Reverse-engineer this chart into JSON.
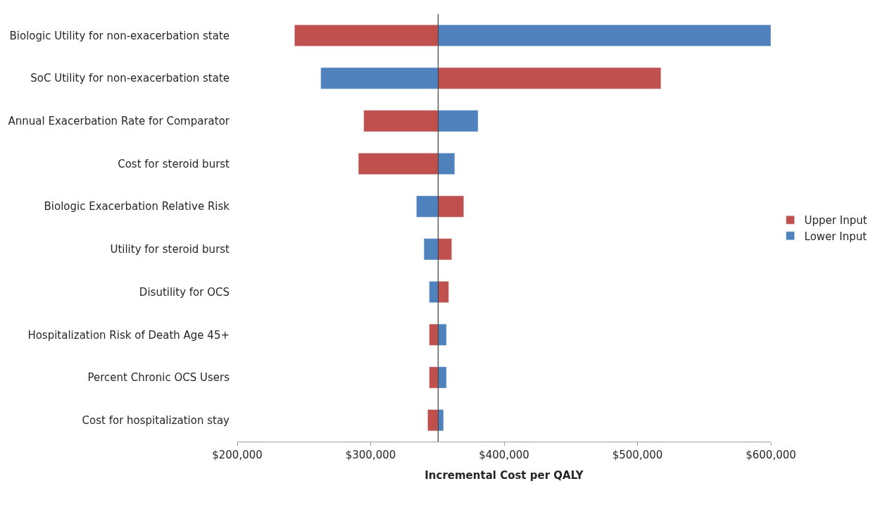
{
  "chart_data": {
    "type": "bar",
    "orientation": "horizontal",
    "xlabel": "Incremental Cost per QALY",
    "categories": [
      "Biologic Utility for non-exacerbation state",
      "SoC Utility for non-exacerbation state",
      "Annual Exacerbation Rate for Comparator",
      "Cost for steroid burst",
      "Biologic Exacerbation Relative Risk",
      "Utility for steroid burst",
      "Disutility for OCS",
      "Hospitalization Risk of Death Age 45+",
      "Percent Chronic OCS Users",
      "Cost for hospitalization stay"
    ],
    "series": [
      {
        "name": "Upper Input",
        "color": "#c0504d",
        "base": [
          242900,
          350600,
          294800,
          290800,
          350600,
          350600,
          350600,
          343900,
          343900,
          342700
        ],
        "values": [
          107700,
          167000,
          55800,
          59800,
          19200,
          10200,
          7900,
          6700,
          6700,
          7900
        ]
      },
      {
        "name": "Lower Input",
        "color": "#4f81bd",
        "base": [
          350600,
          262600,
          350600,
          350600,
          334300,
          339900,
          343900,
          350600,
          350600,
          350600
        ],
        "values": [
          249400,
          88000,
          29900,
          12400,
          16300,
          10700,
          6700,
          6200,
          6200,
          4000
        ]
      }
    ],
    "xlim": [
      200000,
      600000
    ],
    "xticks": [
      {
        "value": 200000,
        "label": "$200,000"
      },
      {
        "value": 300000,
        "label": "$300,000"
      },
      {
        "value": 400000,
        "label": "$400,000"
      },
      {
        "value": 500000,
        "label": "$500,000"
      },
      {
        "value": 600000,
        "label": "$600,000"
      }
    ],
    "ref_lines": [
      {
        "axis": "x",
        "value": 350600,
        "color": "#404040"
      }
    ],
    "legend": "right"
  }
}
